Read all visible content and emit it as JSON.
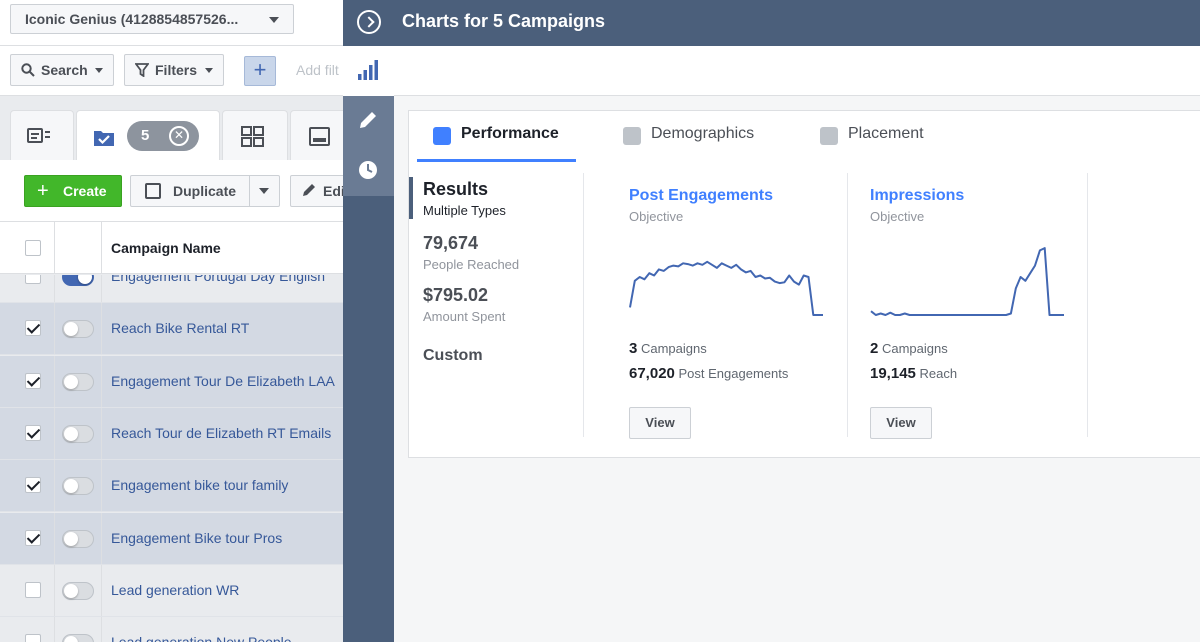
{
  "account": {
    "name": "Iconic Genius (4128854857526..."
  },
  "filter_bar": {
    "search_label": "Search",
    "filters_label": "Filters",
    "add_filter_placeholder": "Add filt"
  },
  "tabs": {
    "selected_count": "5"
  },
  "toolbar": {
    "create_label": "Create",
    "duplicate_label": "Duplicate",
    "edit_label": "Edit"
  },
  "table": {
    "column_header": "Campaign Name",
    "rows": [
      {
        "name": "Engagement Portugal Day English",
        "checked": false,
        "active": true,
        "selected": false
      },
      {
        "name": "Reach Bike Rental RT",
        "checked": true,
        "active": false,
        "selected": true
      },
      {
        "name": "Engagement Tour De Elizabeth LAA",
        "checked": true,
        "active": false,
        "selected": true
      },
      {
        "name": "Reach Tour de Elizabeth RT Emails",
        "checked": true,
        "active": false,
        "selected": true
      },
      {
        "name": "Engagement bike tour family",
        "checked": true,
        "active": false,
        "selected": true
      },
      {
        "name": "Engagement Bike tour Pros",
        "checked": true,
        "active": false,
        "selected": true
      },
      {
        "name": "Lead generation WR",
        "checked": false,
        "active": false,
        "selected": false
      },
      {
        "name": "Lead generation New People",
        "checked": false,
        "active": false,
        "selected": false
      }
    ]
  },
  "panel": {
    "title": "Charts for 5 Campaigns",
    "tabs": [
      {
        "label": "Performance",
        "active": true
      },
      {
        "label": "Demographics",
        "active": false
      },
      {
        "label": "Placement",
        "active": false
      }
    ],
    "results": {
      "title": "Results",
      "subtitle": "Multiple Types",
      "metrics": [
        {
          "value": "79,674",
          "label": "People Reached"
        },
        {
          "value": "$795.02",
          "label": "Amount Spent"
        }
      ],
      "custom_label": "Custom"
    },
    "metric_cards": [
      {
        "title": "Post Engagements",
        "subtitle": "Objective",
        "campaigns_count": "3",
        "campaigns_label": "Campaigns",
        "total_value": "67,020",
        "total_label": "Post Engagements",
        "view_label": "View",
        "sparkline": [
          0.1,
          0.45,
          0.5,
          0.47,
          0.55,
          0.52,
          0.6,
          0.58,
          0.63,
          0.65,
          0.64,
          0.68,
          0.67,
          0.65,
          0.68,
          0.66,
          0.7,
          0.66,
          0.62,
          0.68,
          0.65,
          0.62,
          0.66,
          0.6,
          0.56,
          0.58,
          0.5,
          0.52,
          0.48,
          0.49,
          0.44,
          0.42,
          0.43,
          0.52,
          0.44,
          0.4,
          0.52,
          0.5,
          0.0,
          0.0,
          0.0
        ]
      },
      {
        "title": "Impressions",
        "subtitle": "Objective",
        "campaigns_count": "2",
        "campaigns_label": "Campaigns",
        "total_value": "19,145",
        "total_label": "Reach",
        "view_label": "View",
        "sparkline": [
          0.05,
          0.0,
          0.02,
          0.0,
          0.03,
          0.0,
          0.0,
          0.02,
          0.0,
          0.0,
          0.0,
          0.0,
          0.0,
          0.0,
          0.0,
          0.0,
          0.0,
          0.0,
          0.0,
          0.0,
          0.0,
          0.0,
          0.0,
          0.0,
          0.0,
          0.0,
          0.0,
          0.0,
          0.0,
          0.02,
          0.35,
          0.5,
          0.45,
          0.55,
          0.65,
          0.85,
          0.88,
          0.0,
          0.0,
          0.0,
          0.0
        ]
      }
    ]
  },
  "colors": {
    "header_bg": "#4b5f7b",
    "link_blue": "#4080ff",
    "create_green": "#42b72a",
    "selected_row": "#d3d9e3"
  }
}
